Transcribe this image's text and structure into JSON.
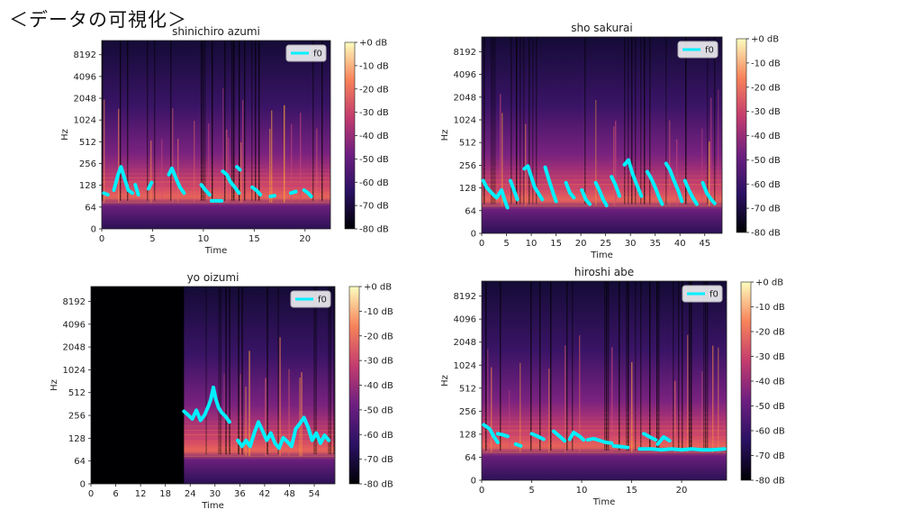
{
  "slide": {
    "title": "＜データの可視化＞"
  },
  "chart_data": [
    {
      "type": "heatmap",
      "title": "shinichiro azumi",
      "xlabel": "Time",
      "ylabel": "Hz",
      "xticks": [
        "0",
        "5",
        "10",
        "15",
        "20"
      ],
      "xlim": [
        0,
        22.5
      ],
      "yticks": [
        "0",
        "64",
        "128",
        "256",
        "512",
        "1024",
        "2048",
        "4096",
        "8192"
      ],
      "legend": {
        "label": "f0",
        "position": "top-right"
      },
      "colorbar": {
        "labels": [
          "+0 dB",
          "-10 dB",
          "-20 dB",
          "-30 dB",
          "-40 dB",
          "-50 dB",
          "-60 dB",
          "-70 dB",
          "-80 dB"
        ],
        "min": -80,
        "max": 0
      },
      "silent_until": 0,
      "f0_segments": [
        [
          [
            0.2,
            100
          ],
          [
            0.6,
            95
          ]
        ],
        [
          [
            1.2,
            110
          ],
          [
            1.6,
            180
          ],
          [
            1.9,
            230
          ],
          [
            2.3,
            150
          ],
          [
            2.6,
            110
          ],
          [
            3.0,
            100
          ]
        ],
        [
          [
            3.3,
            130
          ],
          [
            3.6,
            95
          ]
        ],
        [
          [
            4.6,
            115
          ],
          [
            4.9,
            140
          ]
        ],
        [
          [
            6.6,
            180
          ],
          [
            6.9,
            220
          ],
          [
            7.3,
            160
          ],
          [
            7.7,
            120
          ],
          [
            8.1,
            100
          ]
        ],
        [
          [
            9.8,
            130
          ],
          [
            10.2,
            110
          ],
          [
            10.6,
            95
          ]
        ],
        [
          [
            10.8,
            78
          ],
          [
            11.8,
            78
          ]
        ],
        [
          [
            11.9,
            200
          ],
          [
            12.3,
            180
          ],
          [
            12.7,
            140
          ],
          [
            13.1,
            120
          ],
          [
            13.5,
            100
          ]
        ],
        [
          [
            13.3,
            230
          ],
          [
            13.6,
            210
          ]
        ],
        [
          [
            14.8,
            120
          ],
          [
            15.2,
            110
          ],
          [
            15.6,
            95
          ]
        ],
        [
          [
            16.6,
            90
          ],
          [
            17.0,
            92
          ]
        ],
        [
          [
            18.6,
            100
          ],
          [
            19.1,
            105
          ]
        ],
        [
          [
            19.9,
            110
          ],
          [
            20.3,
            100
          ],
          [
            20.6,
            90
          ]
        ]
      ]
    },
    {
      "type": "heatmap",
      "title": "sho sakurai",
      "xlabel": "Time",
      "ylabel": "Hz",
      "xticks": [
        "0",
        "5",
        "10",
        "15",
        "20",
        "25",
        "30",
        "35",
        "40",
        "45"
      ],
      "xlim": [
        0,
        48.5
      ],
      "yticks": [
        "0",
        "64",
        "128",
        "256",
        "512",
        "1024",
        "2048",
        "4096",
        "8192"
      ],
      "legend": {
        "label": "f0",
        "position": "top-right"
      },
      "colorbar": {
        "labels": [
          "+0 dB",
          "-10 dB",
          "-20 dB",
          "-30 dB",
          "-40 dB",
          "-50 dB",
          "-60 dB",
          "-70 dB",
          "-80 dB"
        ],
        "min": -80,
        "max": 0
      },
      "silent_until": 0,
      "f0_segments": [
        [
          [
            0.3,
            160
          ],
          [
            1.0,
            130
          ],
          [
            2.0,
            110
          ],
          [
            3.0,
            95
          ],
          [
            4.0,
            120
          ],
          [
            4.6,
            90
          ],
          [
            5.2,
            70
          ]
        ],
        [
          [
            5.8,
            160
          ],
          [
            6.5,
            120
          ],
          [
            7.2,
            90
          ]
        ],
        [
          [
            8.6,
            230
          ],
          [
            9.3,
            250
          ],
          [
            10.0,
            180
          ],
          [
            10.7,
            130
          ],
          [
            11.4,
            110
          ],
          [
            12.2,
            90
          ]
        ],
        [
          [
            12.8,
            240
          ],
          [
            13.6,
            160
          ],
          [
            14.4,
            110
          ],
          [
            15.0,
            85
          ]
        ],
        [
          [
            17.0,
            150
          ],
          [
            17.8,
            110
          ],
          [
            18.6,
            95
          ]
        ],
        [
          [
            20.2,
            120
          ],
          [
            21.0,
            90
          ],
          [
            21.8,
            78
          ]
        ],
        [
          [
            23.0,
            150
          ],
          [
            23.7,
            120
          ],
          [
            24.5,
            90
          ],
          [
            25.2,
            75
          ]
        ],
        [
          [
            26.2,
            180
          ],
          [
            27.0,
            140
          ],
          [
            27.8,
            100
          ]
        ],
        [
          [
            28.8,
            260
          ],
          [
            29.6,
            300
          ],
          [
            30.4,
            200
          ],
          [
            31.3,
            140
          ],
          [
            32.2,
            100
          ]
        ],
        [
          [
            33.4,
            210
          ],
          [
            34.2,
            170
          ],
          [
            35.0,
            130
          ],
          [
            35.8,
            95
          ],
          [
            36.4,
            78
          ]
        ],
        [
          [
            37.2,
            270
          ],
          [
            38.0,
            220
          ],
          [
            38.8,
            160
          ],
          [
            39.6,
            120
          ],
          [
            40.4,
            85
          ]
        ],
        [
          [
            41.0,
            160
          ],
          [
            41.8,
            120
          ],
          [
            42.6,
            95
          ],
          [
            43.4,
            78
          ]
        ],
        [
          [
            44.6,
            150
          ],
          [
            45.4,
            110
          ],
          [
            46.3,
            90
          ],
          [
            47.0,
            80
          ]
        ]
      ]
    },
    {
      "type": "heatmap",
      "title": "yo oizumi",
      "xlabel": "Time",
      "ylabel": "Hz",
      "xticks": [
        "0",
        "6",
        "12",
        "18",
        "24",
        "30",
        "36",
        "42",
        "48",
        "54"
      ],
      "xlim": [
        0,
        59
      ],
      "yticks": [
        "0",
        "64",
        "128",
        "256",
        "512",
        "1024",
        "2048",
        "4096",
        "8192"
      ],
      "legend": {
        "label": "f0",
        "position": "top-right"
      },
      "colorbar": {
        "labels": [
          "+0 dB",
          "-10 dB",
          "-20 dB",
          "-30 dB",
          "-40 dB",
          "-50 dB",
          "-60 dB",
          "-70 dB",
          "-80 dB"
        ],
        "min": -80,
        "max": 0
      },
      "silent_until": 22.5,
      "f0_segments": [
        [
          [
            22.5,
            290
          ],
          [
            23.5,
            260
          ],
          [
            24.5,
            230
          ],
          [
            25.5,
            300
          ],
          [
            26.5,
            220
          ],
          [
            27.5,
            260
          ],
          [
            28.5,
            350
          ],
          [
            29.0,
            420
          ],
          [
            29.6,
            600
          ],
          [
            30.2,
            420
          ],
          [
            30.8,
            330
          ],
          [
            31.6,
            280
          ],
          [
            32.5,
            250
          ],
          [
            33.5,
            210
          ]
        ],
        [
          [
            35.5,
            120
          ],
          [
            36.5,
            100
          ],
          [
            37.5,
            120
          ],
          [
            38.5,
            100
          ],
          [
            39.5,
            150
          ],
          [
            40.5,
            210
          ],
          [
            41.5,
            160
          ],
          [
            42.5,
            120
          ],
          [
            43.5,
            150
          ],
          [
            44.5,
            110
          ],
          [
            45.5,
            95
          ],
          [
            46.5,
            130
          ],
          [
            47.5,
            115
          ],
          [
            48.5,
            100
          ],
          [
            49.5,
            170
          ],
          [
            50.5,
            200
          ],
          [
            51.5,
            240
          ],
          [
            52.5,
            180
          ],
          [
            53.5,
            120
          ],
          [
            54.5,
            150
          ],
          [
            55.5,
            110
          ],
          [
            56.5,
            140
          ],
          [
            57.5,
            120
          ]
        ]
      ]
    },
    {
      "type": "heatmap",
      "title": "hiroshi abe",
      "xlabel": "Time",
      "ylabel": "Hz",
      "xticks": [
        "0",
        "5",
        "10",
        "15",
        "20"
      ],
      "xlim": [
        0,
        24.5
      ],
      "yticks": [
        "0",
        "64",
        "128",
        "256",
        "512",
        "1024",
        "2048",
        "4096",
        "8192"
      ],
      "legend": {
        "label": "f0",
        "position": "top-right"
      },
      "colorbar": {
        "labels": [
          "+0 dB",
          "-10 dB",
          "-20 dB",
          "-30 dB",
          "-40 dB",
          "-50 dB",
          "-60 dB",
          "-70 dB",
          "-80 dB"
        ],
        "min": -80,
        "max": 0
      },
      "silent_until": 0,
      "f0_segments": [
        [
          [
            0.2,
            170
          ],
          [
            0.8,
            150
          ],
          [
            1.2,
            120
          ],
          [
            1.6,
            100
          ]
        ],
        [
          [
            1.6,
            130
          ],
          [
            2.2,
            125
          ],
          [
            2.6,
            120
          ]
        ],
        [
          [
            3.4,
            95
          ],
          [
            3.9,
            90
          ]
        ],
        [
          [
            5.0,
            130
          ],
          [
            5.6,
            120
          ],
          [
            6.2,
            110
          ]
        ],
        [
          [
            7.2,
            140
          ],
          [
            7.8,
            120
          ],
          [
            8.3,
            105
          ]
        ],
        [
          [
            8.8,
            110
          ],
          [
            9.2,
            135
          ],
          [
            9.8,
            120
          ],
          [
            10.2,
            108
          ]
        ],
        [
          [
            10.6,
            108
          ],
          [
            11.2,
            112
          ],
          [
            11.8,
            106
          ],
          [
            12.4,
            100
          ],
          [
            13.0,
            98
          ]
        ],
        [
          [
            13.2,
            90
          ],
          [
            14.0,
            88
          ],
          [
            14.6,
            86
          ]
        ],
        [
          [
            16.2,
            130
          ],
          [
            16.8,
            118
          ],
          [
            17.4,
            108
          ]
        ],
        [
          [
            17.6,
            95
          ],
          [
            18.2,
            118
          ],
          [
            18.8,
            105
          ]
        ],
        [
          [
            15.8,
            82
          ],
          [
            17.0,
            82
          ],
          [
            18.0,
            80
          ],
          [
            19.0,
            82
          ],
          [
            20.0,
            80
          ],
          [
            21.0,
            82
          ],
          [
            22.0,
            80
          ],
          [
            23.0,
            80
          ],
          [
            24.3,
            82
          ]
        ]
      ]
    }
  ]
}
